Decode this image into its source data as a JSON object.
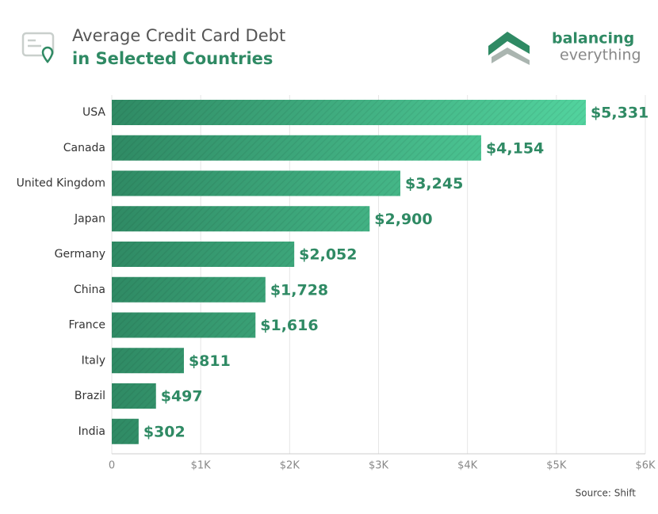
{
  "chart_data": {
    "type": "bar",
    "orientation": "horizontal",
    "title": "Average Credit Card Debt",
    "subtitle": "in Selected Countries",
    "categories": [
      "USA",
      "Canada",
      "United Kingdom",
      "Japan",
      "Germany",
      "China",
      "France",
      "Italy",
      "Brazil",
      "India"
    ],
    "values": [
      5331,
      4154,
      3245,
      2900,
      2052,
      1728,
      1616,
      811,
      497,
      302
    ],
    "value_labels": [
      "$5,331",
      "$4,154",
      "$3,245",
      "$2,900",
      "$2,052",
      "$1,728",
      "$1,616",
      "$811",
      "$497",
      "$302"
    ],
    "color": "#2f8a64",
    "xlim": [
      0,
      6000
    ],
    "xticks": [
      0,
      {
        "value": 1000,
        "label": "$1K"
      },
      {
        "value": 2000,
        "label": "$2K"
      },
      {
        "value": 3000,
        "label": "$3K"
      },
      {
        "value": 4000,
        "label": "$4K"
      },
      {
        "value": 5000,
        "label": "$5K"
      },
      {
        "value": 6000,
        "label": "$6K"
      }
    ],
    "grid": true,
    "source": "Source: Shift"
  },
  "logo": {
    "line1": "balancing",
    "line2": "everything"
  }
}
